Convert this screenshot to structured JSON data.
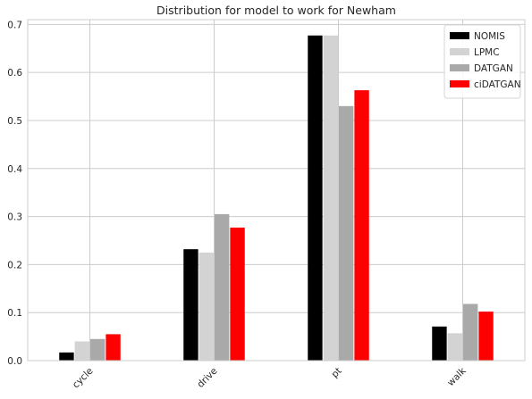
{
  "chart_data": {
    "type": "bar",
    "title": "Distribution for model to work for Newham",
    "xlabel": "",
    "ylabel": "",
    "categories": [
      "cycle",
      "drive",
      "pt",
      "walk"
    ],
    "series": [
      {
        "name": "NOMIS",
        "color": "#000000",
        "values": [
          0.017,
          0.232,
          0.677,
          0.071
        ]
      },
      {
        "name": "LPMC",
        "color": "#d3d3d3",
        "values": [
          0.04,
          0.225,
          0.677,
          0.057
        ]
      },
      {
        "name": "DATGAN",
        "color": "#a9a9a9",
        "values": [
          0.045,
          0.305,
          0.53,
          0.118
        ]
      },
      {
        "name": "ciDATGAN",
        "color": "#ff0000",
        "values": [
          0.055,
          0.277,
          0.563,
          0.102
        ]
      }
    ],
    "ylim": [
      0,
      0.71
    ],
    "yticks": [
      "0.0",
      "0.1",
      "0.2",
      "0.3",
      "0.4",
      "0.5",
      "0.6",
      "0.7"
    ],
    "grid": true,
    "legend_position": "top-right",
    "xtick_rotation": "45deg"
  }
}
